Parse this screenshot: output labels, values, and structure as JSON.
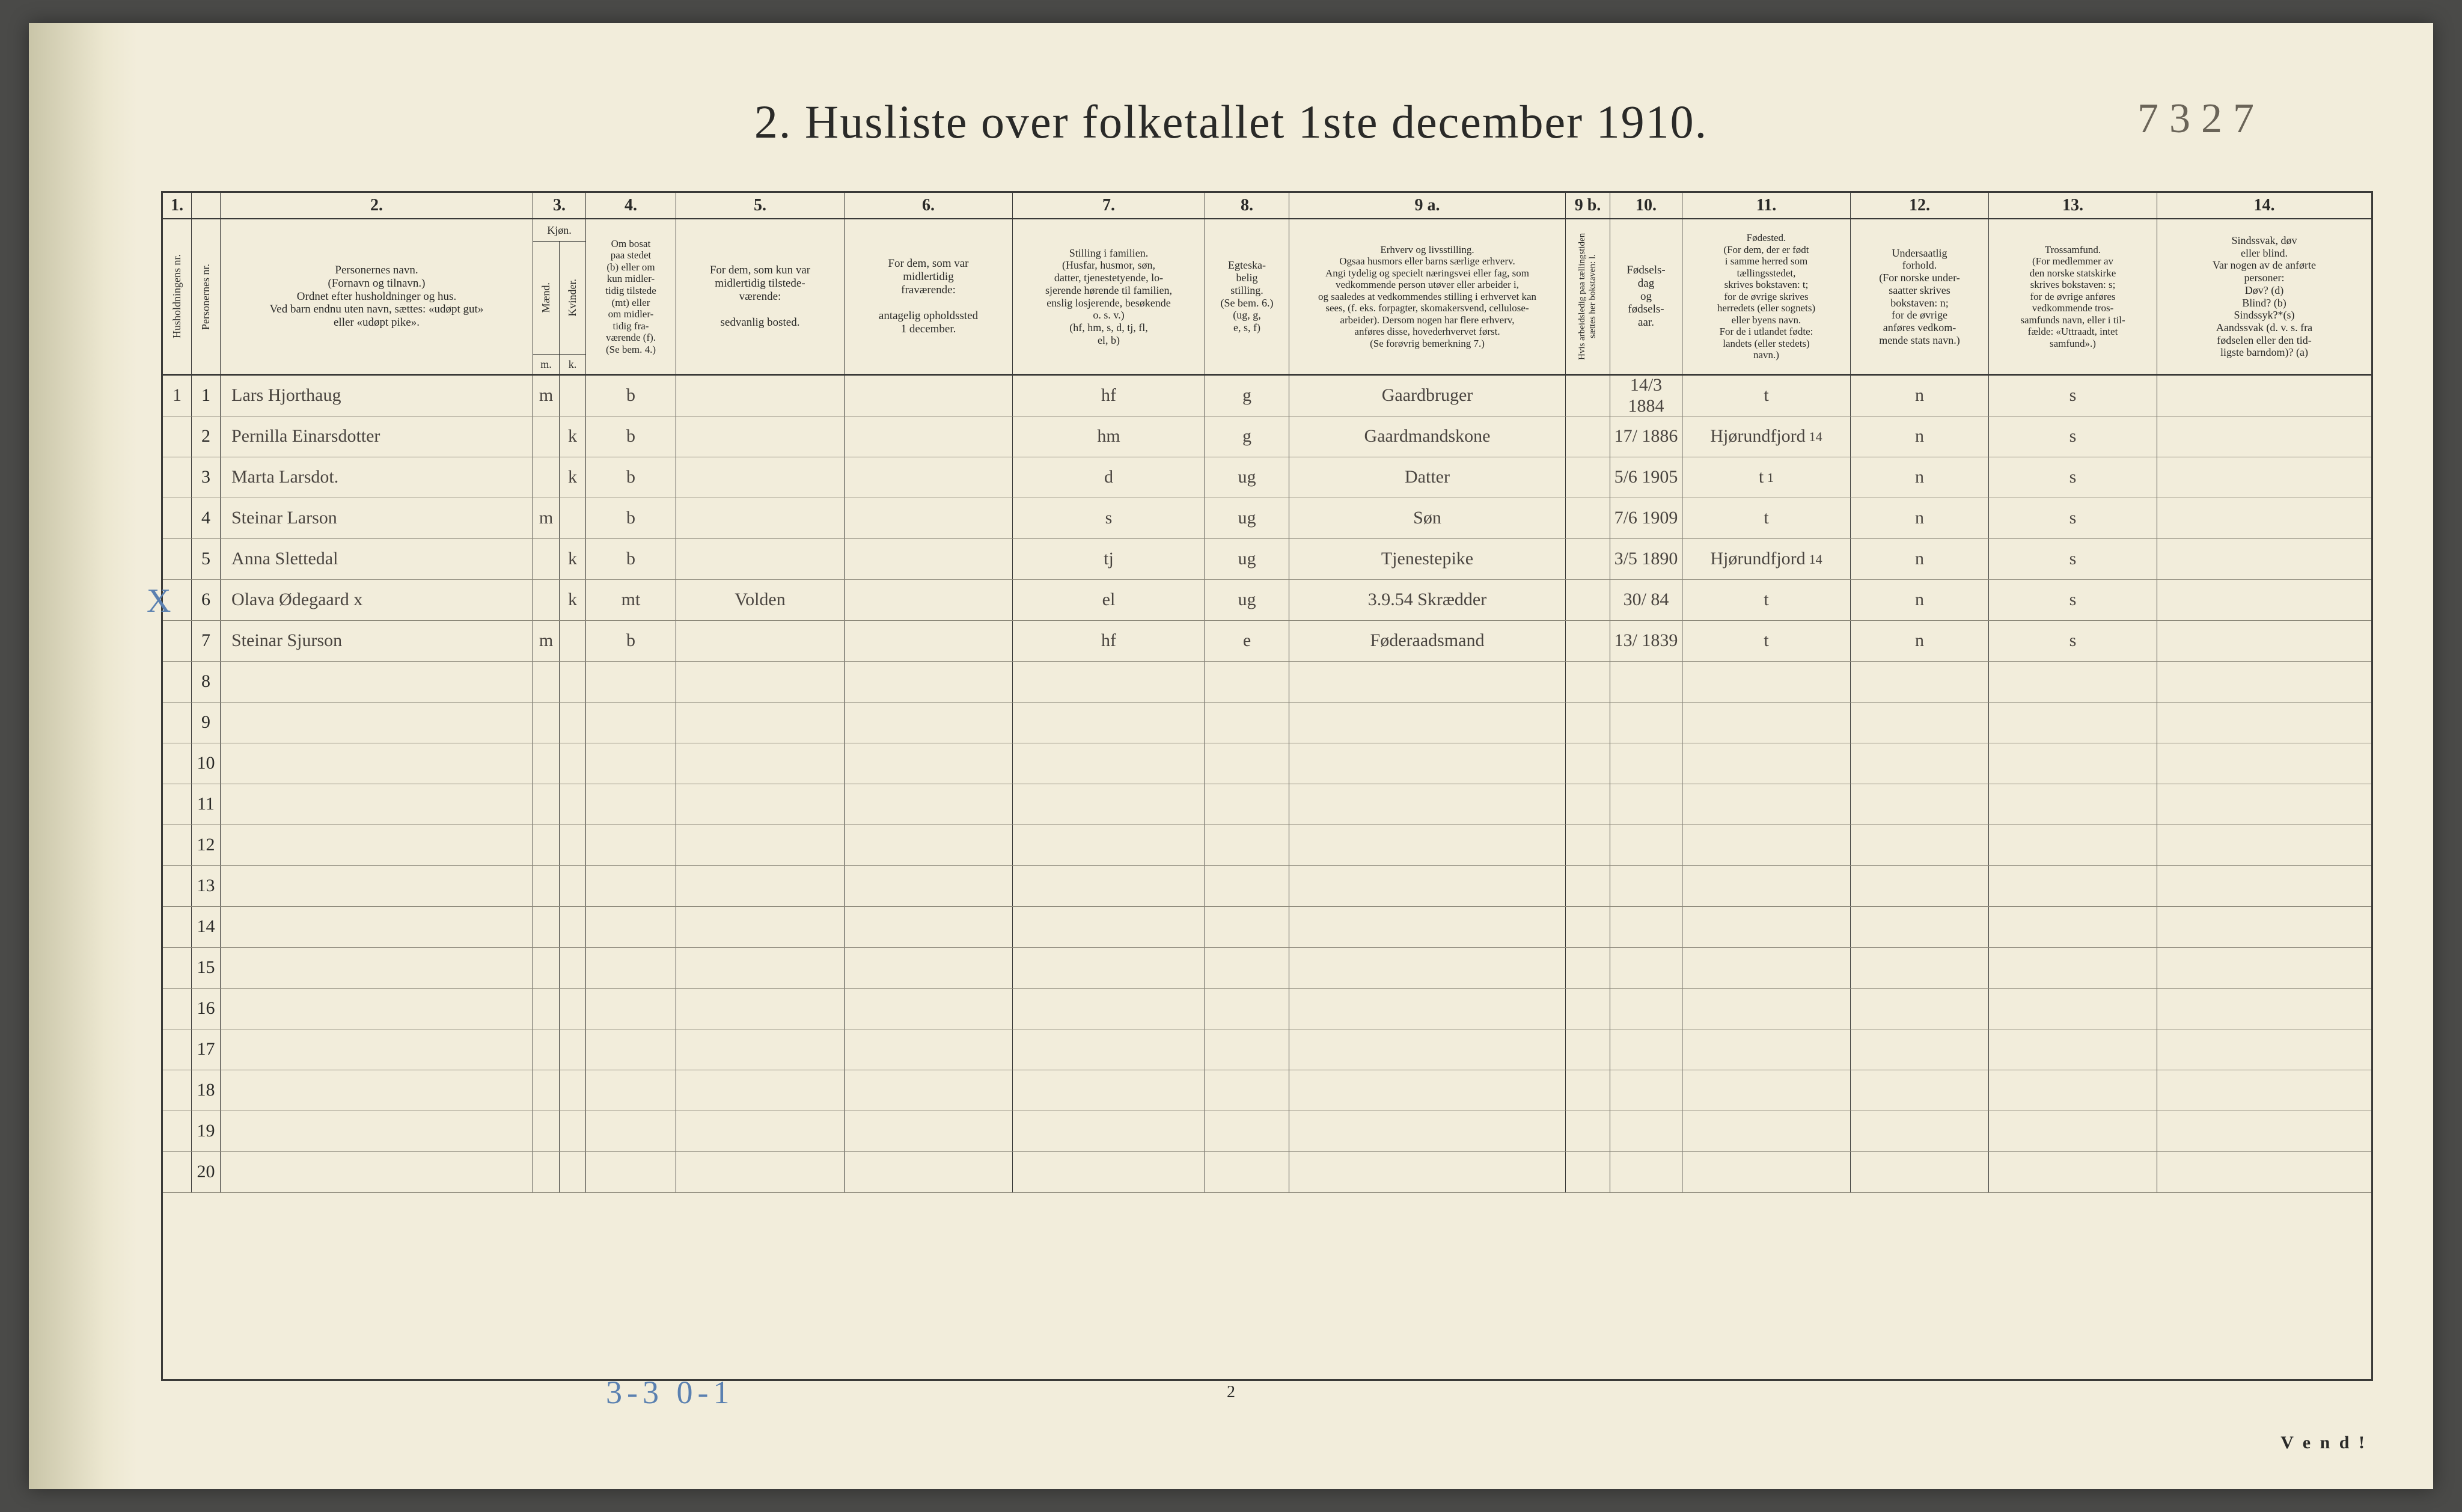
{
  "title": "2.  Husliste over folketallet 1ste december 1910.",
  "hand_number": "7327",
  "col_nums": [
    "1.",
    "",
    "2.",
    "3.",
    "4.",
    "5.",
    "6.",
    "7.",
    "8.",
    "9 a.",
    "9 b.",
    "10.",
    "11.",
    "12.",
    "13.",
    "14."
  ],
  "headers": {
    "c1": "Husholdningens nr.",
    "c2": "Personernes nr.",
    "c3": "Personernes navn.\n(Fornavn og tilnavn.)\nOrdnet efter husholdninger og hus.\nVed barn endnu uten navn, sættes: «udøpt gut»\neller «udøpt pike».",
    "c4": "Kjøn.",
    "c4a": "Mænd.",
    "c4b": "Kvinder.",
    "c4mk": [
      "m.",
      "k."
    ],
    "c5": "Om bosat\npaa stedet\n(b) eller om\nkun midler-\ntidig tilstede\n(mt) eller\nom midler-\ntidig fra-\nværende (f).\n(Se bem. 4.)",
    "c6": "For dem, som kun var\nmidlertidig tilstede-\nværende:\n\nsedvanlig bosted.",
    "c7": "For dem, som var\nmidlertidig\nfraværende:\n\nantagelig opholdssted\n1 december.",
    "c8": "Stilling i familien.\n(Husfar, husmor, søn,\ndatter, tjenestetyende, lo-\nsjerende hørende til familien,\nenslig losjerende, besøkende\no. s. v.)\n(hf, hm, s, d, tj, fl,\nel, b)",
    "c9": "Egteska-\nbelig\nstilling.\n(Se bem. 6.)\n(ug, g,\ne, s, f)",
    "c10": "Erhverv og livsstilling.\nOgsaa husmors eller barns særlige erhverv.\nAngi tydelig og specielt næringsvei eller fag, som\nvedkommende person utøver eller arbeider i,\nog saaledes at vedkommendes stilling i erhvervet kan\nsees, (f. eks. forpagter, skomakersvend, cellulose-\narbeider). Dersom nogen har flere erhverv,\nanføres disse, hovederhvervet først.\n(Se forøvrig bemerkning 7.)",
    "c11": "Hvis arbeidsledig\npaa tællingstiden sættes\nher bokstaven: l.",
    "c12": "Fødsels-\ndag\nog\nfødsels-\naar.",
    "c13": "Fødested.\n(For dem, der er født\ni samme herred som\ntællingsstedet,\nskrives bokstaven: t;\nfor de øvrige skrives\nherredets (eller sognets)\neller byens navn.\nFor de i utlandet fødte:\nlandets (eller stedets)\nnavn.)",
    "c14": "Undersaatlig\nforhold.\n(For norske under-\nsaatter skrives\nbokstaven: n;\nfor de øvrige\nanføres vedkom-\nmende stats navn.)",
    "c15": "Trossamfund.\n(For medlemmer av\nden norske statskirke\nskrives bokstaven: s;\nfor de øvrige anføres\nvedkommende tros-\nsamfunds navn, eller i til-\nfælde: «Uttraadt, intet\nsamfund».)",
    "c16": "Sindssvak, døv\neller blind.\nVar nogen av de anførte\npersoner:\nDøv?        (d)\nBlind?      (b)\nSindssyk?*(s)\nAandssvak (d. v. s. fra\nfødselen eller den tid-\nligste barndom)? (a)"
  },
  "rows": [
    {
      "n": "1",
      "hh": "1",
      "name": "Lars Hjorthaug",
      "mk": "m",
      "res": "b",
      "mid": "",
      "absent": "",
      "fam": "hf",
      "mar": "g",
      "occ": "Gaardbruger",
      "led": "",
      "birth": "14/3 1884",
      "place": "t",
      "nat": "n",
      "rel": "s",
      "dis": ""
    },
    {
      "n": "2",
      "hh": "",
      "name": "Pernilla Einarsdotter",
      "mk": "k",
      "res": "b",
      "mid": "",
      "absent": "",
      "fam": "hm",
      "mar": "g",
      "occ": "Gaardmandskone",
      "led": "",
      "birth": "17/ 1886",
      "place": "Hjørundfjord",
      "place_sup": "14",
      "nat": "n",
      "rel": "s",
      "dis": ""
    },
    {
      "n": "3",
      "hh": "",
      "name": "Marta Larsdot.",
      "mk": "k",
      "res": "b",
      "mid": "",
      "absent": "",
      "fam": "d",
      "mar": "ug",
      "occ": "Datter",
      "led": "",
      "birth": "5/6 1905",
      "place": "t",
      "place_sup": "1",
      "nat": "n",
      "rel": "s",
      "dis": ""
    },
    {
      "n": "4",
      "hh": "",
      "name": "Steinar Larson",
      "mk": "m",
      "res": "b",
      "mid": "",
      "absent": "",
      "fam": "s",
      "mar": "ug",
      "occ": "Søn",
      "led": "",
      "birth": "7/6 1909",
      "place": "t",
      "nat": "n",
      "rel": "s",
      "dis": ""
    },
    {
      "n": "5",
      "hh": "",
      "name": "Anna Slettedal",
      "mk": "k",
      "res": "b",
      "mid": "",
      "absent": "",
      "fam": "tj",
      "mar": "ug",
      "occ": "Tjenestepike",
      "led": "",
      "birth": "3/5 1890",
      "place": "Hjørundfjord",
      "place_sup": "14",
      "nat": "n",
      "rel": "s",
      "dis": ""
    },
    {
      "n": "6",
      "hh": "",
      "name": "Olava Ødegaard x",
      "mk": "k",
      "res": "mt",
      "mid": "Volden",
      "absent": "",
      "fam": "el",
      "mar": "ug",
      "occ": "3.9.54 Skrædder",
      "led": "",
      "birth": "30/ 84",
      "place": "t",
      "nat": "n",
      "rel": "s",
      "dis": "",
      "xmark": true
    },
    {
      "n": "7",
      "hh": "",
      "name": "Steinar Sjurson",
      "mk": "m",
      "res": "b",
      "mid": "",
      "absent": "",
      "fam": "hf",
      "mar": "e",
      "occ": "Føderaadsmand",
      "led": "",
      "birth": "13/ 1839",
      "place": "t",
      "nat": "n",
      "rel": "s",
      "dis": ""
    }
  ],
  "blank_rows": [
    "8",
    "9",
    "10",
    "11",
    "12",
    "13",
    "14",
    "15",
    "16",
    "17",
    "18",
    "19",
    "20"
  ],
  "footnote": "3-3    0-1",
  "page_number_bottom": "2",
  "vend": "V e n d !"
}
